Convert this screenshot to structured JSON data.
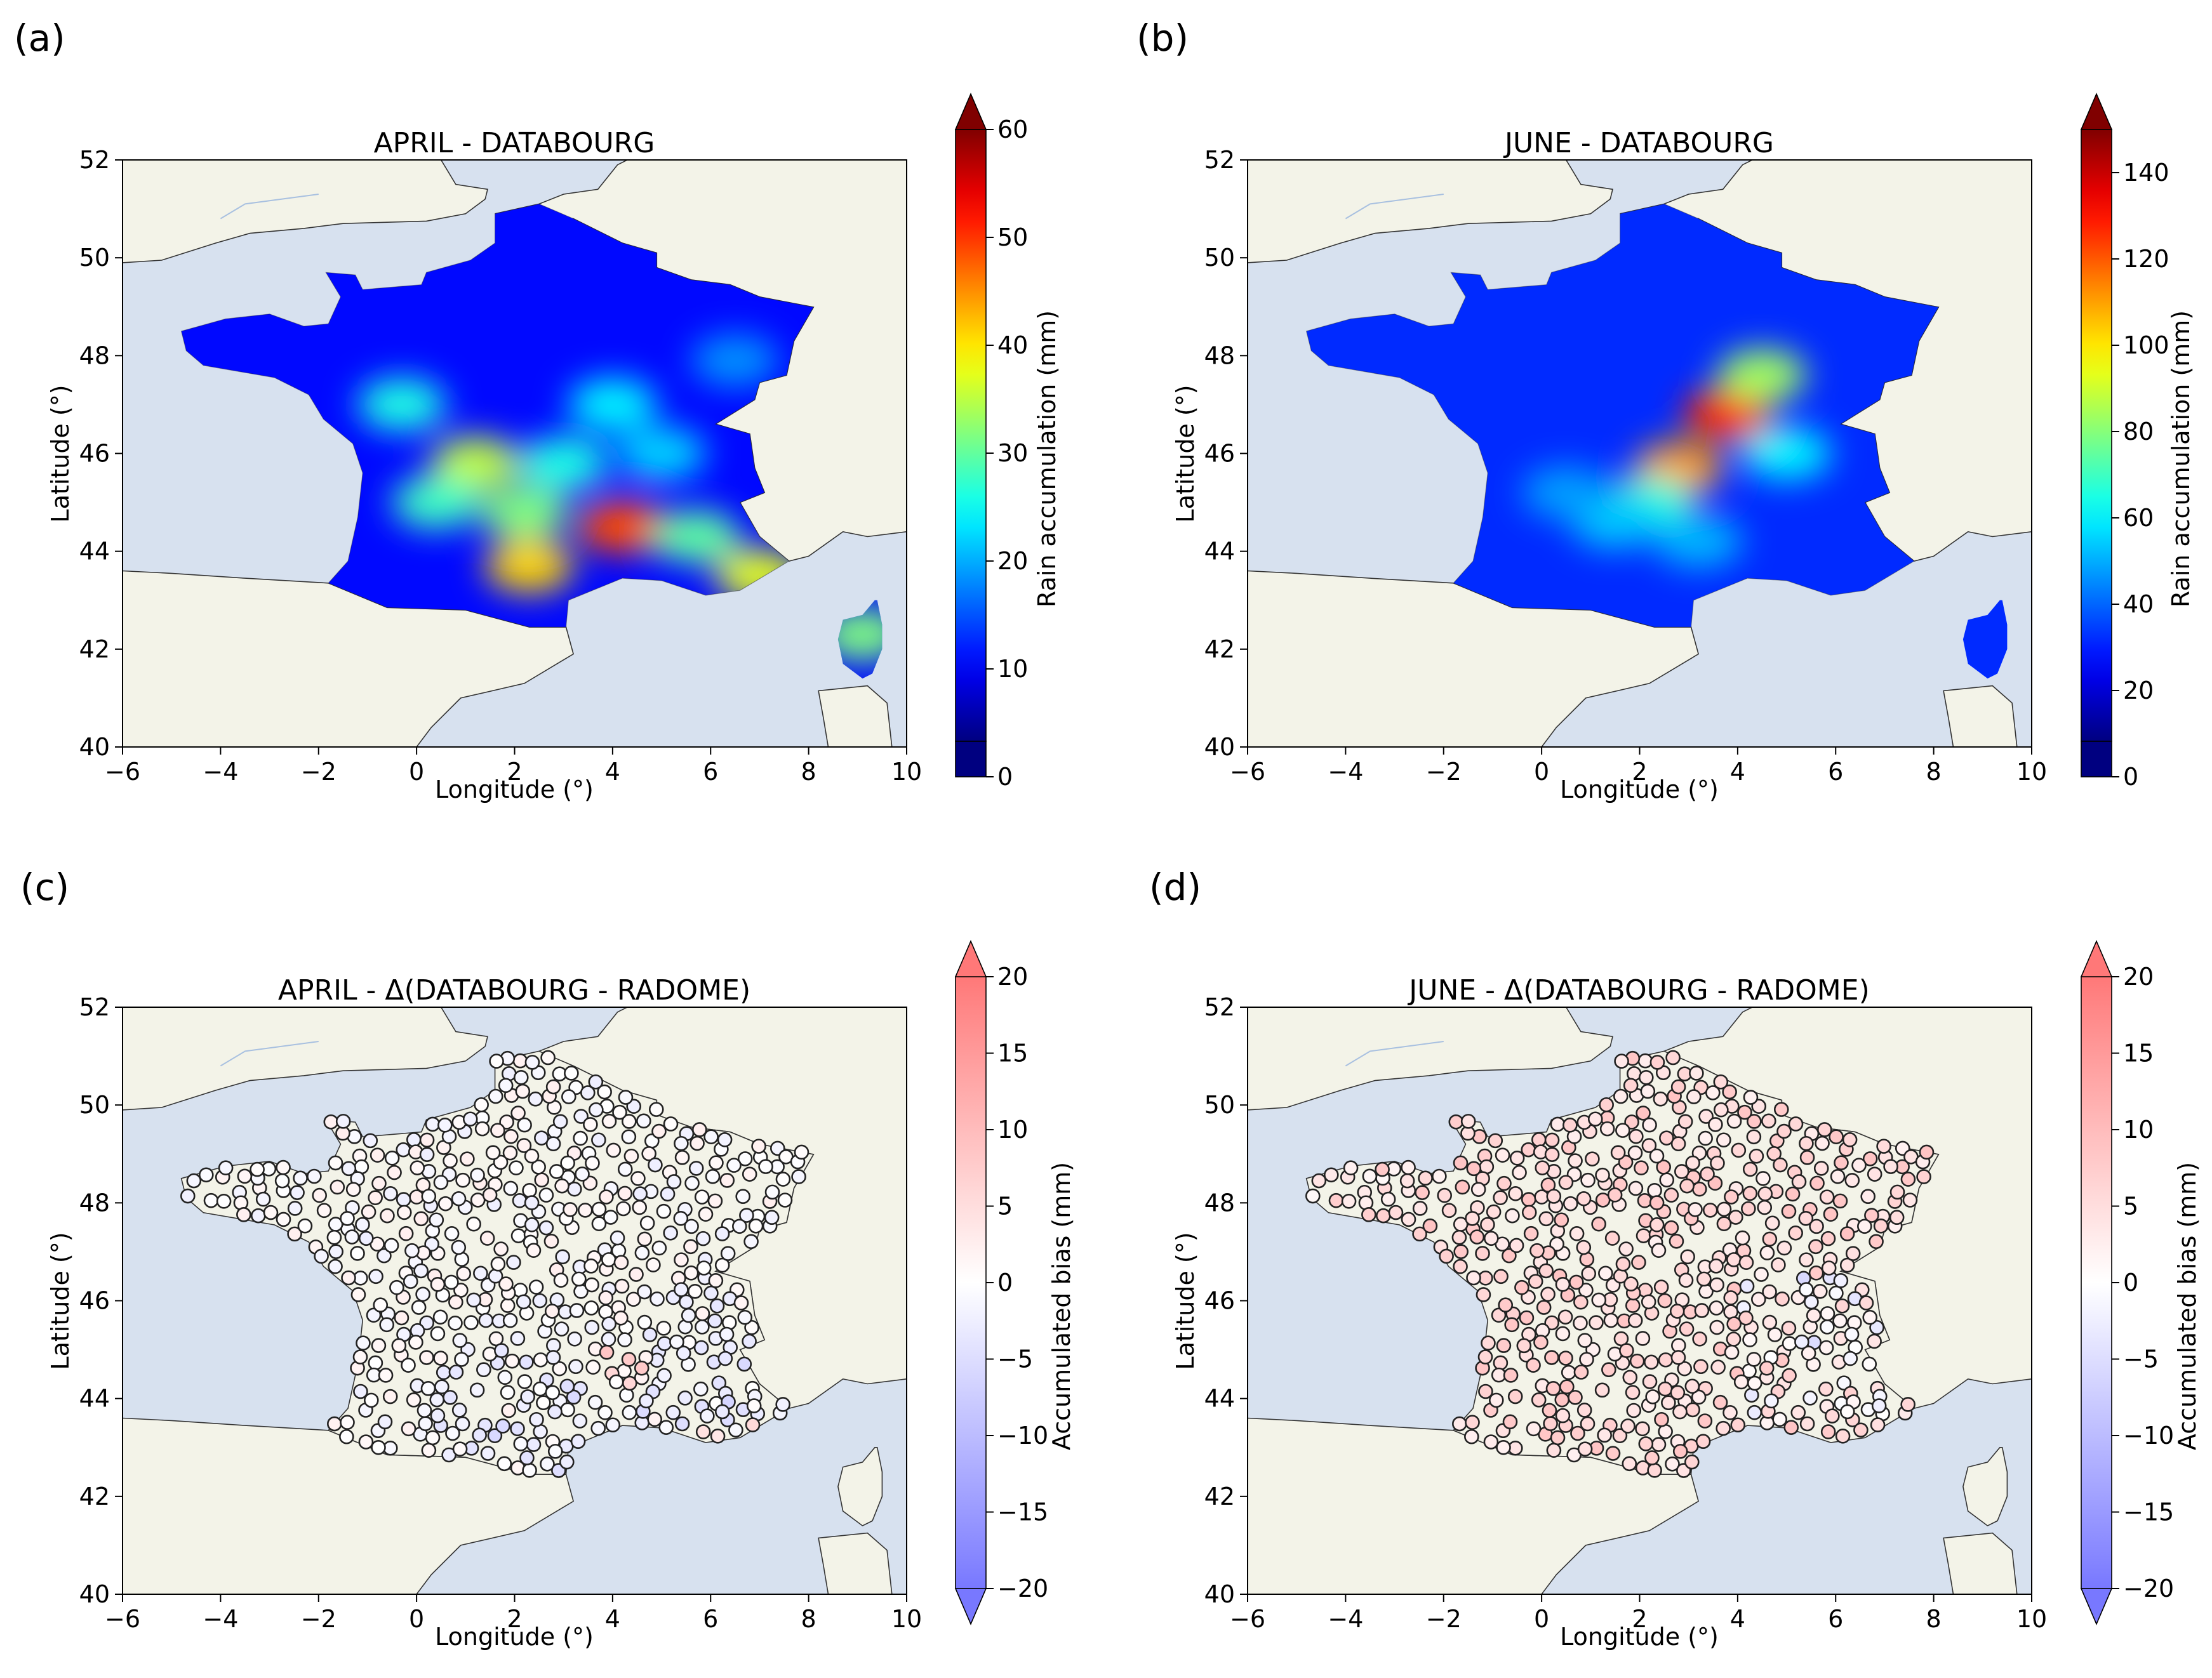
{
  "colors": {
    "ocean": "#d7e1ef",
    "land": "#f3f3e8",
    "coast": "#333333",
    "rivers": "#a8c0e0"
  },
  "chart_data": [
    {
      "panel": "(a)",
      "type": "heatmap",
      "title": "APRIL - DATABOURG",
      "xlabel": "Longitude (°)",
      "ylabel": "Latitude (°)",
      "xlim": [
        -6,
        10
      ],
      "ylim": [
        40,
        52
      ],
      "xticks": [
        "−6",
        "−4",
        "−2",
        "0",
        "2",
        "4",
        "6",
        "8",
        "10"
      ],
      "yticks": [
        "40",
        "42",
        "44",
        "46",
        "48",
        "50",
        "52"
      ],
      "colormap": "jet",
      "colorbar": {
        "label": "Rain accumulation (mm)",
        "range": [
          0,
          60
        ],
        "ticks": [
          "0",
          "10",
          "20",
          "30",
          "40",
          "50",
          "60"
        ],
        "extend": "max"
      },
      "background_level": 8,
      "hotspots": [
        {
          "lon": 4.2,
          "lat": 44.5,
          "value": 48
        },
        {
          "lon": 2.3,
          "lat": 43.7,
          "value": 40
        },
        {
          "lon": 1.2,
          "lat": 45.8,
          "value": 34
        },
        {
          "lon": 0.4,
          "lat": 45.0,
          "value": 26
        },
        {
          "lon": 7.0,
          "lat": 43.5,
          "value": 36
        },
        {
          "lon": -0.3,
          "lat": 47.0,
          "value": 24
        },
        {
          "lon": 9.1,
          "lat": 42.3,
          "value": 30
        },
        {
          "lon": 2.2,
          "lat": 44.8,
          "value": 30
        },
        {
          "lon": 5.7,
          "lat": 44.3,
          "value": 28
        },
        {
          "lon": 4.0,
          "lat": 47.0,
          "value": 22
        },
        {
          "lon": 6.5,
          "lat": 47.9,
          "value": 16
        },
        {
          "lon": 3.0,
          "lat": 45.8,
          "value": 24
        },
        {
          "lon": 5.0,
          "lat": 46.0,
          "value": 20
        }
      ]
    },
    {
      "panel": "(b)",
      "type": "heatmap",
      "title": "JUNE - DATABOURG",
      "xlabel": "Longitude (°)",
      "ylabel": "Latitude (°)",
      "xlim": [
        -6,
        10
      ],
      "ylim": [
        40,
        52
      ],
      "xticks": [
        "−6",
        "−4",
        "−2",
        "0",
        "2",
        "4",
        "6",
        "8",
        "10"
      ],
      "yticks": [
        "40",
        "42",
        "44",
        "46",
        "48",
        "50",
        "52"
      ],
      "colormap": "jet",
      "colorbar": {
        "label": "Rain accumulation (mm)",
        "range": [
          0,
          150
        ],
        "ticks": [
          "0",
          "20",
          "40",
          "60",
          "80",
          "100",
          "120",
          "140"
        ],
        "extend": "max"
      },
      "background_level": 25,
      "hotspots": [
        {
          "lon": 3.8,
          "lat": 46.8,
          "value": 125
        },
        {
          "lon": 2.8,
          "lat": 45.7,
          "value": 108
        },
        {
          "lon": 4.5,
          "lat": 47.6,
          "value": 80
        },
        {
          "lon": 2.2,
          "lat": 45.0,
          "value": 62
        },
        {
          "lon": 5.0,
          "lat": 46.0,
          "value": 55
        },
        {
          "lon": 1.5,
          "lat": 44.6,
          "value": 48
        },
        {
          "lon": 3.2,
          "lat": 44.2,
          "value": 45
        },
        {
          "lon": 0.5,
          "lat": 45.2,
          "value": 42
        }
      ]
    },
    {
      "panel": "(c)",
      "type": "scatter",
      "title": "APRIL - Δ(DATABOURG - RADOME)",
      "xlabel": "Longitude (°)",
      "ylabel": "Latitude (°)",
      "xlim": [
        -6,
        10
      ],
      "ylim": [
        40,
        52
      ],
      "xticks": [
        "−6",
        "−4",
        "−2",
        "0",
        "2",
        "4",
        "6",
        "8",
        "10"
      ],
      "yticks": [
        "40",
        "42",
        "44",
        "46",
        "48",
        "50",
        "52"
      ],
      "colormap": "bwr",
      "colorbar": {
        "label": "Accumulated bias (mm)",
        "range": [
          -20,
          20
        ],
        "ticks": [
          "−20",
          "−15",
          "−10",
          "−5",
          "0",
          "5",
          "10",
          "15",
          "20"
        ],
        "extend": "both"
      },
      "station_bias_pattern": "mostly near 0 (about −2 to +3 mm); negative biases concentrated in the south-east and south-west; a few positive stations near 4.3°E 44.6°N and the Mediterranean coast",
      "stations": "approximately 600 rain-gauge stations covering mainland France and Corsica"
    },
    {
      "panel": "(d)",
      "type": "scatter",
      "title": "JUNE - Δ(DATABOURG - RADOME)",
      "xlabel": "Longitude (°)",
      "ylabel": "Latitude (°)",
      "xlim": [
        -6,
        10
      ],
      "ylim": [
        40,
        52
      ],
      "xticks": [
        "−6",
        "−4",
        "−2",
        "0",
        "2",
        "4",
        "6",
        "8",
        "10"
      ],
      "yticks": [
        "40",
        "42",
        "44",
        "46",
        "48",
        "50",
        "52"
      ],
      "colormap": "bwr",
      "colorbar": {
        "label": "Accumulated bias (mm)",
        "range": [
          -20,
          20
        ],
        "ticks": [
          "−20",
          "−15",
          "−10",
          "−5",
          "0",
          "5",
          "10",
          "15",
          "20"
        ],
        "extend": "both"
      },
      "station_bias_pattern": "predominantly positive (about +3 to +12 mm) over central France; some negative stations in the south-east",
      "stations": "approximately 600 rain-gauge stations covering mainland France and Corsica"
    }
  ]
}
